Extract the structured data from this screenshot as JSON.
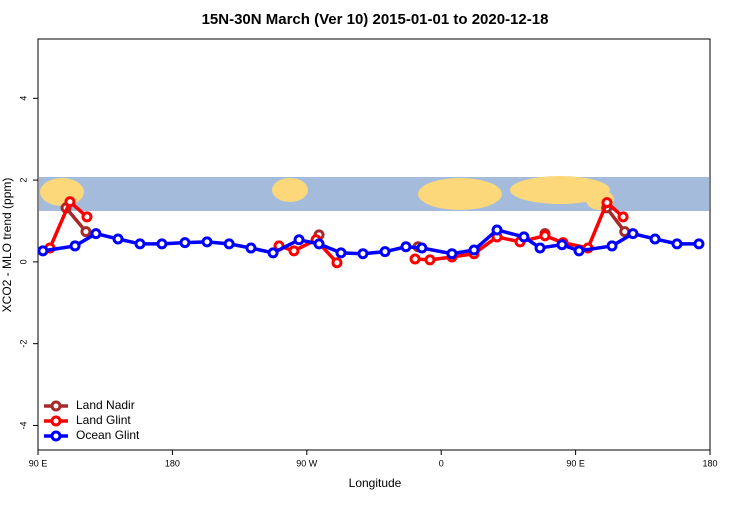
{
  "chart_data": {
    "type": "line",
    "title": "15N-30N March (Ver 10)   2015-01-01 to 2020-12-18",
    "x_label": "Longitude",
    "y_label": "XCO2 - MLO trend (ppm)",
    "xlim": [
      90,
      540
    ],
    "xticks": [
      {
        "value": 90,
        "label": "90 E"
      },
      180,
      {
        "value": 270,
        "label": "90 W"
      },
      {
        "value": 360,
        "label": "0"
      },
      {
        "value": 450,
        "label": "90 E"
      },
      {
        "value": 540,
        "label": "180"
      }
    ],
    "ylim": [
      -4.6,
      5.45
    ],
    "yticks": [
      -4,
      -2,
      0,
      2,
      4
    ],
    "legend": "bottom-left",
    "series": [
      {
        "name": "Land Nadir",
        "color": "#a52a2a",
        "x": [
          108.8,
          122.1,
          null,
          278.2,
          null,
          344.5,
          null,
          382,
          null,
          429.5,
          null,
          470.8,
          482.9
        ],
        "values": [
          1.32,
          0.74,
          null,
          0.66,
          null,
          0.37,
          null,
          0.27,
          null,
          0.69,
          null,
          1.32,
          0.74
        ]
      },
      {
        "name": "Land Glint",
        "color": "#ff0000",
        "x": [
          98,
          111.4,
          122.8,
          null,
          251.4,
          261.4,
          276.2,
          290.2,
          null,
          342.5,
          352.5,
          367.2,
          382,
          397.4,
          412.8,
          429.5,
          441.6,
          458.3,
          471,
          481.8
        ],
        "values": [
          0.34,
          1.47,
          1.1,
          null,
          0.39,
          0.27,
          0.54,
          -0.02,
          null,
          0.07,
          0.05,
          0.12,
          0.2,
          0.61,
          0.49,
          0.64,
          0.47,
          0.34,
          1.45,
          1.1
        ]
      },
      {
        "name": "Ocean Glint",
        "color": "#0000ff",
        "x": [
          93.3,
          114.8,
          128.8,
          143.6,
          158.3,
          173,
          188.4,
          203.2,
          218,
          232.6,
          247.4,
          264.8,
          278.2,
          292.9,
          307.6,
          322.4,
          336.4,
          347.1,
          367.2,
          382,
          397.4,
          415.4,
          426.2,
          440.9,
          452.3,
          474.4,
          488.4,
          503.2,
          517.9,
          532.6
        ],
        "values": [
          0.27,
          0.39,
          0.69,
          0.56,
          0.44,
          0.44,
          0.47,
          0.49,
          0.44,
          0.34,
          0.22,
          0.54,
          0.44,
          0.22,
          0.2,
          0.25,
          0.37,
          0.34,
          0.2,
          0.29,
          0.78,
          0.61,
          0.34,
          0.42,
          0.27,
          0.39,
          0.69,
          0.56,
          0.44,
          0.44
        ]
      }
    ]
  }
}
